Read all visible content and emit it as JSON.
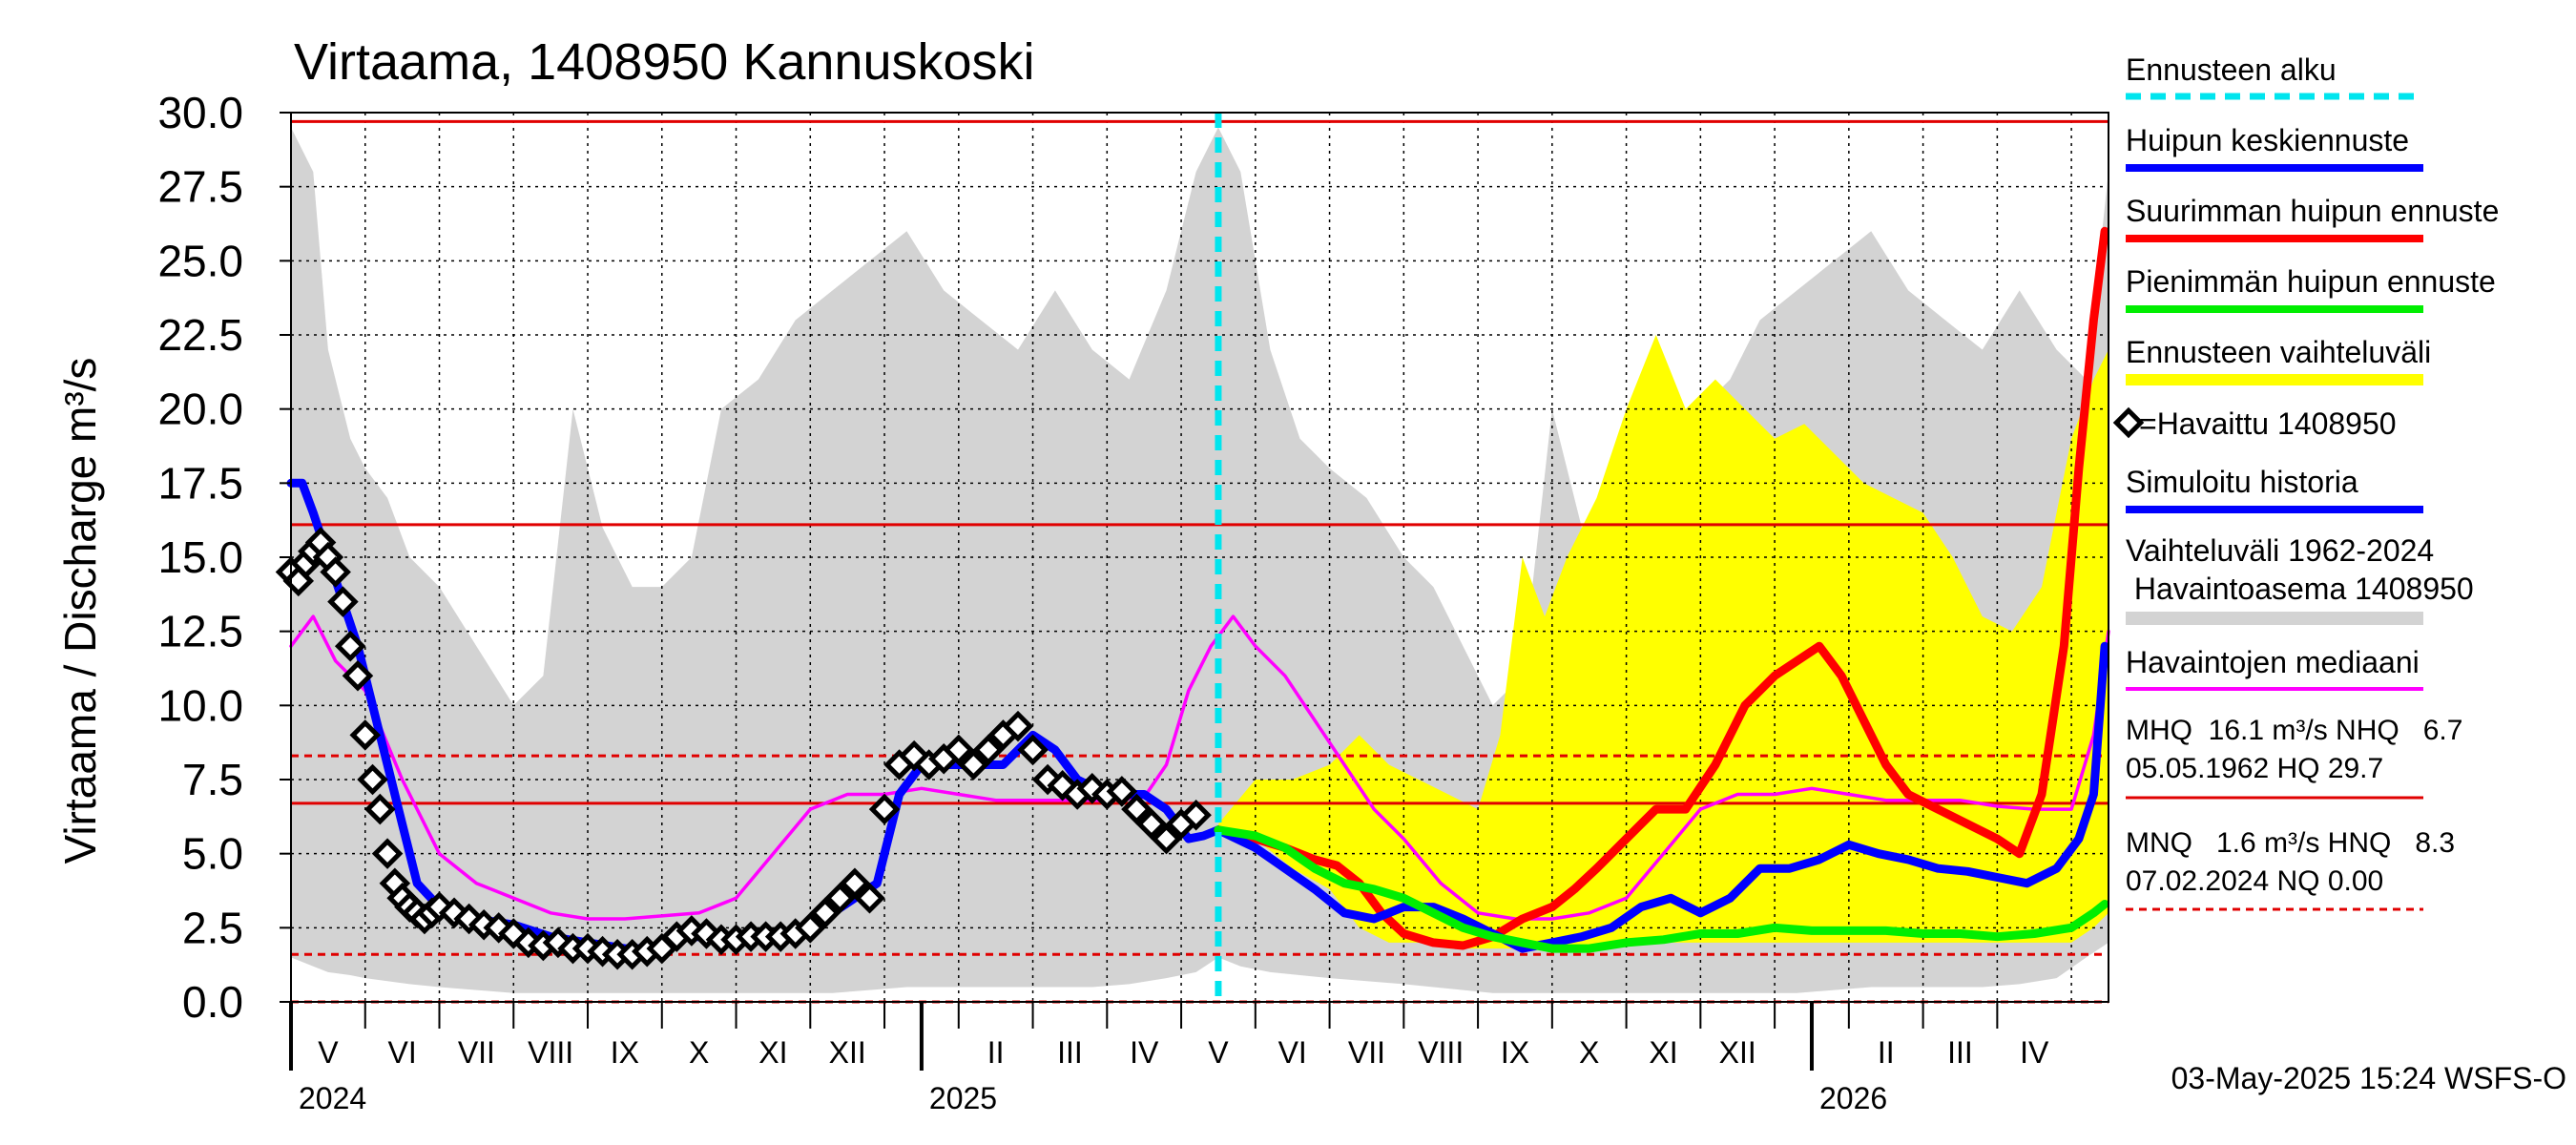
{
  "chart_data": {
    "type": "line",
    "title": "Virtaama, 1408950 Kannuskoski",
    "ylabel": "Virtaama / Discharge    m³/s",
    "ylim": [
      0,
      30
    ],
    "y_ticks": [
      "0.0",
      "2.5",
      "5.0",
      "7.5",
      "10.0",
      "12.5",
      "15.0",
      "17.5",
      "20.0",
      "22.5",
      "25.0",
      "27.5",
      "30.0"
    ],
    "y_tick_values": [
      0,
      2.5,
      5,
      7.5,
      10,
      12.5,
      15,
      17.5,
      20,
      22.5,
      25,
      27.5,
      30
    ],
    "x_range_months": [
      0,
      24.5
    ],
    "x_start": "2024-04-15",
    "month_labels": [
      "V",
      "VI",
      "VII",
      "VIII",
      "IX",
      "X",
      "XI",
      "XII",
      "I",
      "II",
      "III",
      "IV",
      "V",
      "VI",
      "VII",
      "VIII",
      "IX",
      "X",
      "XI",
      "XII",
      "I",
      "II",
      "III",
      "IV"
    ],
    "year_labels": [
      "2024",
      "2025",
      "2026"
    ],
    "year_positions_months": [
      0,
      8.5,
      20.5
    ],
    "forecast_start_months": 12.5,
    "reference_lines": [
      {
        "name": "HQ",
        "value": 29.7,
        "style": "solid"
      },
      {
        "name": "MHQ",
        "value": 16.1,
        "style": "solid"
      },
      {
        "name": "HNQ",
        "value": 8.3,
        "style": "dashed"
      },
      {
        "name": "NHQ",
        "value": 6.7,
        "style": "solid"
      },
      {
        "name": "MNQ",
        "value": 1.6,
        "style": "dashed"
      },
      {
        "name": "NQ",
        "value": 0.0,
        "style": "dashed"
      }
    ],
    "series": [
      {
        "name": "Vaihteluväli 1962-2024 Havaintoasema 1408950",
        "kind": "band",
        "color": "#d3d3d3",
        "x": [
          0,
          0.3,
          0.5,
          0.8,
          1,
          1.3,
          1.6,
          2,
          2.5,
          3,
          3.4,
          3.8,
          4.2,
          4.6,
          5,
          5.4,
          5.8,
          6.3,
          6.8,
          7.3,
          7.8,
          8.3,
          8.8,
          9.3,
          9.8,
          10.3,
          10.8,
          11.3,
          11.8,
          12.2,
          12.5,
          12.8,
          13.2,
          13.6,
          14,
          14.5,
          15,
          15.4,
          15.8,
          16.2,
          16.6,
          17,
          17.4,
          17.8,
          18.2,
          18.6,
          19,
          19.4,
          19.8,
          20.3,
          20.8,
          21.3,
          21.8,
          22.3,
          22.8,
          23.3,
          23.8,
          24.2,
          24.5
        ],
        "low": [
          1.5,
          1.2,
          1,
          0.9,
          0.8,
          0.7,
          0.6,
          0.5,
          0.4,
          0.3,
          0.3,
          0.3,
          0.3,
          0.3,
          0.3,
          0.3,
          0.3,
          0.3,
          0.3,
          0.3,
          0.4,
          0.5,
          0.5,
          0.5,
          0.5,
          0.5,
          0.5,
          0.6,
          0.8,
          1,
          1.5,
          1.2,
          1,
          0.9,
          0.8,
          0.7,
          0.6,
          0.5,
          0.4,
          0.3,
          0.3,
          0.3,
          0.3,
          0.3,
          0.3,
          0.3,
          0.3,
          0.3,
          0.3,
          0.3,
          0.4,
          0.5,
          0.5,
          0.5,
          0.5,
          0.6,
          0.8,
          1.5,
          2
        ],
        "high": [
          29.5,
          28,
          22,
          19,
          18,
          17,
          15,
          14,
          12,
          10,
          11,
          20,
          16,
          14,
          14,
          15,
          20,
          21,
          23,
          24,
          25,
          26,
          24,
          23,
          22,
          24,
          22,
          21,
          24,
          28,
          29.5,
          28,
          22,
          19,
          18,
          17,
          15,
          14,
          12,
          10,
          11,
          20,
          16,
          14,
          14,
          15,
          20,
          21,
          23,
          24,
          25,
          26,
          24,
          23,
          22,
          24,
          22,
          21,
          28
        ]
      },
      {
        "name": "Ennusteen vaihteluväli",
        "kind": "band",
        "color": "#ffff00",
        "x": [
          12.5,
          13,
          13.5,
          14,
          14.4,
          14.8,
          15.2,
          15.6,
          16,
          16.3,
          16.6,
          16.9,
          17.2,
          17.6,
          18,
          18.4,
          18.8,
          19.2,
          19.6,
          20,
          20.4,
          20.8,
          21.2,
          21.6,
          22,
          22.4,
          22.8,
          23.2,
          23.6,
          24,
          24.3,
          24.5
        ],
        "low": [
          5.8,
          5.5,
          4.5,
          3.8,
          2.5,
          2,
          2,
          1.8,
          1.8,
          1.8,
          1.8,
          1.8,
          1.8,
          1.8,
          2,
          2,
          2,
          2,
          2,
          2,
          2,
          2,
          2,
          2,
          2,
          2,
          2,
          2,
          2,
          2,
          2.5,
          3
        ],
        "high": [
          6,
          7.5,
          7.5,
          8,
          9,
          8,
          7.5,
          7,
          6.5,
          9,
          15,
          13,
          15,
          17,
          20,
          22.5,
          20,
          21,
          20,
          19,
          19.5,
          18.5,
          17.5,
          17,
          16.5,
          15,
          13,
          12.5,
          14,
          19,
          21,
          22
        ]
      },
      {
        "name": "Havaintojen mediaani",
        "kind": "line",
        "color": "#ff00ff",
        "x": [
          0,
          0.3,
          0.6,
          1,
          1.5,
          2,
          2.5,
          3,
          3.5,
          4,
          4.5,
          5,
          5.5,
          6,
          6.5,
          7,
          7.5,
          8,
          8.5,
          9,
          9.5,
          10,
          10.5,
          11,
          11.5,
          11.8,
          12.1,
          12.4,
          12.7,
          13,
          13.4,
          13.8,
          14.2,
          14.6,
          15,
          15.5,
          16,
          16.5,
          17,
          17.5,
          18,
          18.5,
          19,
          19.5,
          20,
          20.5,
          21,
          21.5,
          22,
          22.5,
          23,
          23.5,
          24,
          24.3,
          24.5
        ],
        "values": [
          12,
          13,
          11.5,
          10.5,
          7.5,
          5,
          4,
          3.5,
          3,
          2.8,
          2.8,
          2.9,
          3,
          3.5,
          5,
          6.5,
          7,
          7,
          7.2,
          7,
          6.8,
          6.8,
          6.8,
          6.8,
          6.9,
          8,
          10.5,
          12,
          13,
          12,
          11,
          9.5,
          8,
          6.5,
          5.5,
          4,
          3,
          2.8,
          2.8,
          3,
          3.5,
          5,
          6.5,
          7,
          7,
          7.2,
          7,
          6.8,
          6.8,
          6.8,
          6.6,
          6.5,
          6.5,
          9,
          12.5
        ]
      },
      {
        "name": "Simuloitu historia",
        "kind": "line",
        "color": "#0000ff",
        "x": [
          0,
          0.15,
          0.3,
          0.5,
          0.7,
          0.9,
          1.1,
          1.3,
          1.5,
          1.7,
          2,
          2.5,
          3,
          3.5,
          4,
          4.5,
          5,
          5.3,
          5.6,
          6,
          6.5,
          7,
          7.3,
          7.6,
          7.9,
          8.2,
          8.5,
          8.8,
          9.2,
          9.6,
          10,
          10.3,
          10.6,
          11,
          11.5,
          11.8,
          12.1,
          12.3,
          12.5
        ],
        "values": [
          17.5,
          17.5,
          16.5,
          15,
          13.5,
          12,
          10,
          8,
          6,
          4,
          3.2,
          2.8,
          2.6,
          2.2,
          2,
          1.8,
          1.8,
          2.2,
          2.2,
          2.2,
          2.3,
          2.5,
          3,
          3.5,
          4,
          7,
          8,
          8,
          8,
          8,
          9,
          8.5,
          7.5,
          7,
          7,
          6.5,
          5.5,
          5.6,
          5.8
        ]
      },
      {
        "name": "Havaittu 1408950",
        "kind": "markers",
        "color": "#000000",
        "x": [
          0,
          0.1,
          0.2,
          0.3,
          0.4,
          0.5,
          0.6,
          0.7,
          0.8,
          0.9,
          1,
          1.1,
          1.2,
          1.3,
          1.4,
          1.5,
          1.6,
          1.7,
          1.8,
          1.9,
          2,
          2.2,
          2.4,
          2.6,
          2.8,
          3,
          3.2,
          3.4,
          3.6,
          3.8,
          4,
          4.2,
          4.4,
          4.6,
          4.8,
          5,
          5.2,
          5.4,
          5.6,
          5.8,
          6,
          6.2,
          6.4,
          6.6,
          6.8,
          7,
          7.2,
          7.4,
          7.6,
          7.8,
          8,
          8.2,
          8.4,
          8.6,
          8.8,
          9,
          9.2,
          9.4,
          9.6,
          9.8,
          10,
          10.2,
          10.4,
          10.6,
          10.8,
          11,
          11.2,
          11.4,
          11.6,
          11.8,
          12,
          12.2
        ],
        "values": [
          14.5,
          14.2,
          14.8,
          15.2,
          15.5,
          15,
          14.5,
          13.5,
          12,
          11,
          9,
          7.5,
          6.5,
          5,
          4,
          3.5,
          3.2,
          3,
          2.8,
          3,
          3.2,
          3,
          2.8,
          2.6,
          2.5,
          2.3,
          2,
          1.9,
          2,
          1.8,
          1.8,
          1.7,
          1.6,
          1.6,
          1.7,
          1.8,
          2.2,
          2.4,
          2.3,
          2.1,
          2.1,
          2.2,
          2.2,
          2.2,
          2.3,
          2.5,
          3,
          3.5,
          4,
          3.5,
          6.5,
          8,
          8.3,
          8,
          8.2,
          8.5,
          8,
          8.5,
          9,
          9.3,
          8.5,
          7.5,
          7.3,
          7,
          7.2,
          7,
          7.1,
          6.5,
          6,
          5.5,
          6,
          6.3
        ]
      },
      {
        "name": "Suurimman huipun ennuste",
        "kind": "line",
        "color": "#ff0000",
        "x": [
          12.5,
          13,
          13.4,
          13.8,
          14.1,
          14.4,
          14.7,
          15,
          15.4,
          15.8,
          16.2,
          16.6,
          17,
          17.3,
          17.6,
          18,
          18.4,
          18.8,
          19.2,
          19.6,
          20,
          20.3,
          20.6,
          20.9,
          21.2,
          21.5,
          21.8,
          22.2,
          22.6,
          23,
          23.3,
          23.6,
          23.9,
          24.1,
          24.3,
          24.45
        ],
        "values": [
          5.8,
          5.5,
          5.2,
          4.8,
          4.6,
          4,
          3,
          2.3,
          2,
          1.9,
          2.2,
          2.8,
          3.2,
          3.8,
          4.5,
          5.5,
          6.5,
          6.5,
          8,
          10,
          11,
          11.5,
          12,
          11,
          9.5,
          8,
          7,
          6.5,
          6,
          5.5,
          5,
          7,
          12,
          18,
          23,
          26
        ]
      },
      {
        "name": "Huipun keskiennuste",
        "kind": "line",
        "color": "#0000ff",
        "x": [
          12.5,
          13,
          13.4,
          13.8,
          14.2,
          14.6,
          15,
          15.4,
          15.8,
          16.2,
          16.6,
          17,
          17.4,
          17.8,
          18.2,
          18.6,
          19,
          19.4,
          19.8,
          20.2,
          20.6,
          21,
          21.4,
          21.8,
          22.2,
          22.6,
          23,
          23.4,
          23.8,
          24.1,
          24.3,
          24.45
        ],
        "values": [
          5.8,
          5.2,
          4.5,
          3.8,
          3,
          2.8,
          3.2,
          3.2,
          2.8,
          2.3,
          1.8,
          2,
          2.2,
          2.5,
          3.2,
          3.5,
          3,
          3.5,
          4.5,
          4.5,
          4.8,
          5.3,
          5,
          4.8,
          4.5,
          4.4,
          4.2,
          4,
          4.5,
          5.5,
          7,
          12
        ]
      },
      {
        "name": "Pienimmän huipun ennuste",
        "kind": "line",
        "color": "#00ee00",
        "x": [
          12.5,
          13,
          13.4,
          13.8,
          14.2,
          14.6,
          15,
          15.4,
          15.8,
          16.2,
          16.6,
          17,
          17.5,
          18,
          18.5,
          19,
          19.5,
          20,
          20.5,
          21,
          21.5,
          22,
          22.5,
          23,
          23.5,
          24,
          24.3,
          24.45
        ],
        "values": [
          5.8,
          5.6,
          5.2,
          4.5,
          4,
          3.8,
          3.5,
          3,
          2.5,
          2.2,
          2,
          1.8,
          1.8,
          2,
          2.1,
          2.3,
          2.3,
          2.5,
          2.4,
          2.4,
          2.4,
          2.3,
          2.3,
          2.2,
          2.3,
          2.5,
          3,
          3.3
        ]
      }
    ],
    "legend": {
      "placement": "right",
      "ennusteen_alku": "Ennusteen alku",
      "huipun_keskiennuste": "Huipun keskiennuste",
      "suurimman": "Suurimman huipun ennuste",
      "pienimman": "Pienimmän huipun ennuste",
      "vaihteluvali": "Ennusteen vaihteluväli",
      "havaittu": "=Havaittu 1408950",
      "simuloitu": "Simuloitu historia",
      "vaihteluvali_hist_1": "Vaihteluväli 1962-2024",
      "vaihteluvali_hist_2": " Havaintoasema 1408950",
      "mediaani": "Havaintojen mediaani",
      "stats_1": "MHQ  16.1 m³/s NHQ   6.7",
      "stats_2": "05.05.1962 HQ 29.7",
      "stats_3": "MNQ   1.6 m³/s HNQ   8.3",
      "stats_4": "07.02.2024 NQ 0.00"
    },
    "footer": "03-May-2025 15:24 WSFS-O"
  },
  "colors": {
    "forecast_start": "#00e5ee",
    "reference": "#e00000",
    "grid": "#000000"
  }
}
